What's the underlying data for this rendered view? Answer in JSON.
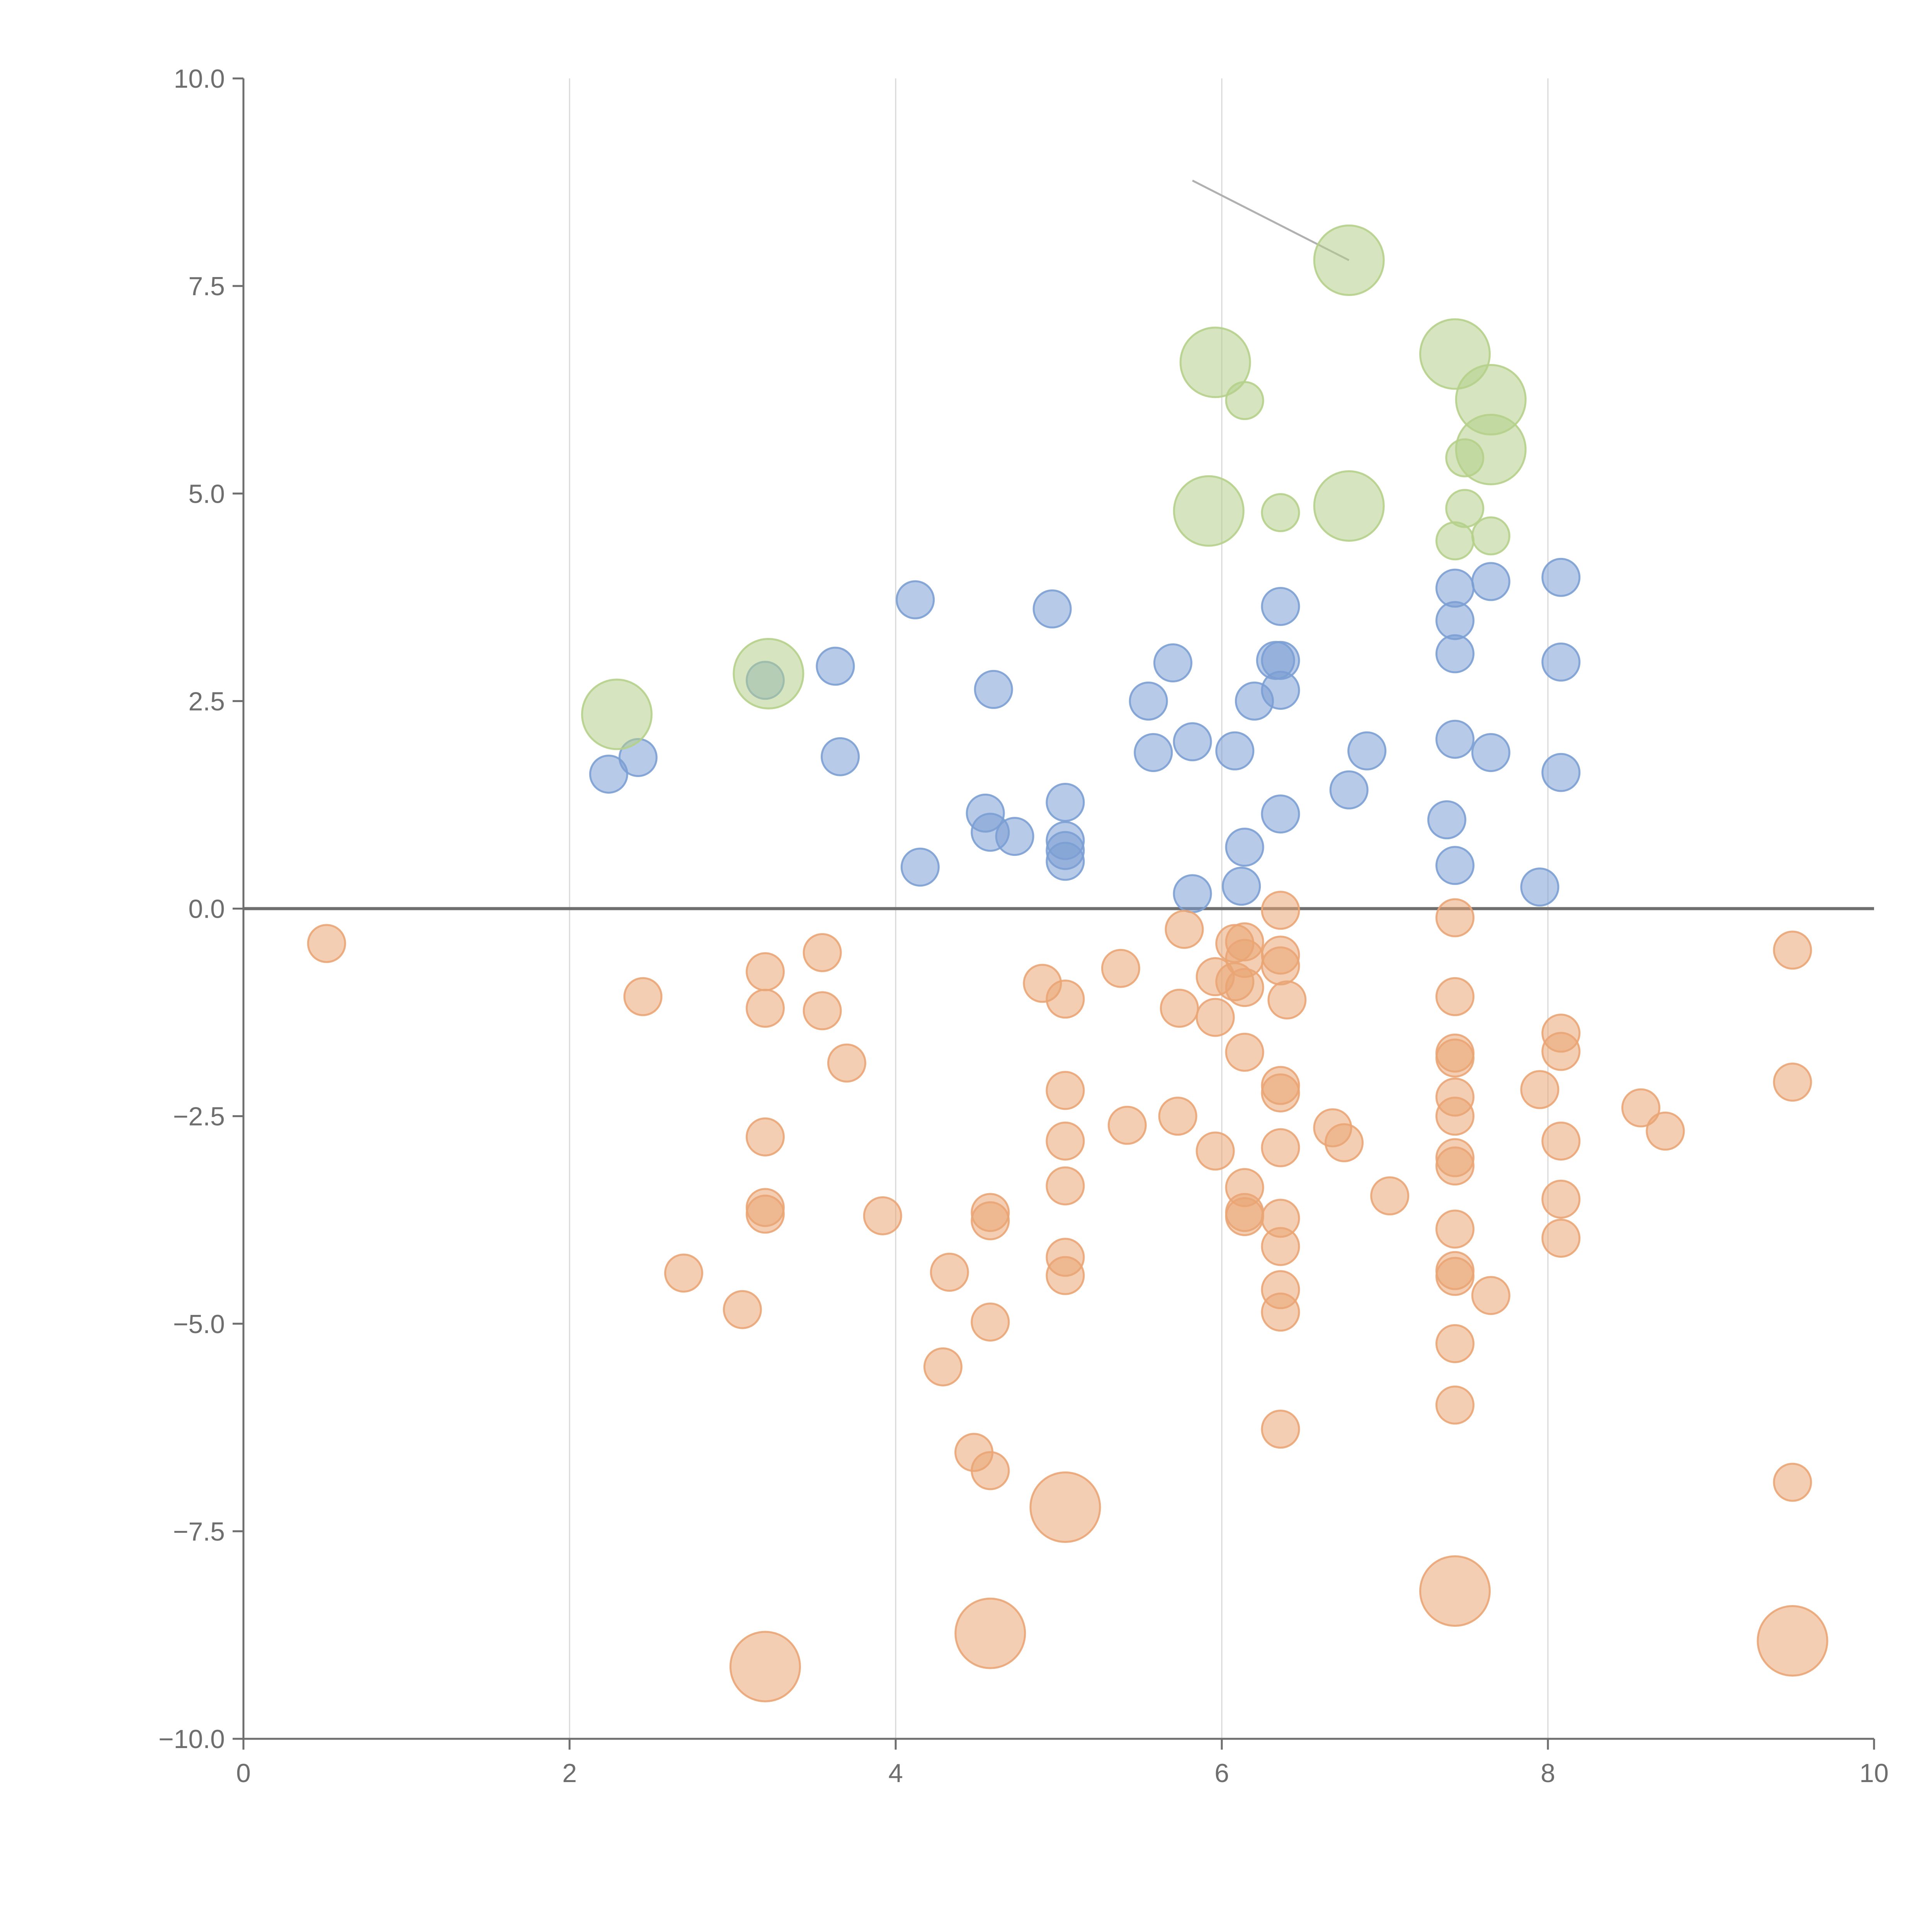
{
  "chart_data": {
    "type": "scatter",
    "title": "",
    "xlabel": "",
    "ylabel": "",
    "xlim": [
      0,
      10
    ],
    "ylim": [
      -10,
      10
    ],
    "x_ticks": [
      "0",
      "2",
      "4",
      "6",
      "8",
      "10"
    ],
    "y_ticks": [
      "10.0",
      "7.5",
      "5.0",
      "2.5",
      "0.0",
      "−2.5",
      "−5.0",
      "−7.5",
      "−10.0"
    ],
    "x_tick_values": [
      0,
      2,
      4,
      6,
      8,
      10
    ],
    "y_tick_values": [
      10,
      7.5,
      5,
      2.5,
      0,
      -2.5,
      -5,
      -7.5,
      -10
    ],
    "grid": "vertical",
    "zero_line": true,
    "legend": "none",
    "size_scale": "larger values drawn as larger bubbles",
    "series": [
      {
        "color": "#7b9fd4",
        "points": [
          {
            "x": 2.24,
            "y": 1.62,
            "s": 1
          },
          {
            "x": 2.42,
            "y": 1.82,
            "s": 1
          },
          {
            "x": 3.2,
            "y": 2.75,
            "s": 1
          },
          {
            "x": 3.63,
            "y": 2.92,
            "s": 1
          },
          {
            "x": 3.66,
            "y": 1.83,
            "s": 1
          },
          {
            "x": 4.12,
            "y": 3.72,
            "s": 1
          },
          {
            "x": 4.15,
            "y": 0.5,
            "s": 1
          },
          {
            "x": 4.55,
            "y": 1.15,
            "s": 1
          },
          {
            "x": 4.58,
            "y": 0.92,
            "s": 1
          },
          {
            "x": 4.6,
            "y": 2.64,
            "s": 1
          },
          {
            "x": 4.73,
            "y": 0.87,
            "s": 1
          },
          {
            "x": 4.96,
            "y": 3.61,
            "s": 1
          },
          {
            "x": 5.04,
            "y": 1.28,
            "s": 1
          },
          {
            "x": 5.04,
            "y": 0.82,
            "s": 1
          },
          {
            "x": 5.04,
            "y": 0.7,
            "s": 1
          },
          {
            "x": 5.04,
            "y": 0.57,
            "s": 1
          },
          {
            "x": 5.55,
            "y": 2.5,
            "s": 1
          },
          {
            "x": 5.58,
            "y": 1.88,
            "s": 1
          },
          {
            "x": 5.7,
            "y": 2.96,
            "s": 1
          },
          {
            "x": 5.82,
            "y": 2.01,
            "s": 1
          },
          {
            "x": 5.82,
            "y": 0.18,
            "s": 1
          },
          {
            "x": 6.08,
            "y": 1.9,
            "s": 1
          },
          {
            "x": 6.12,
            "y": 0.27,
            "s": 1
          },
          {
            "x": 6.14,
            "y": 0.74,
            "s": 1
          },
          {
            "x": 6.2,
            "y": 2.5,
            "s": 1
          },
          {
            "x": 6.33,
            "y": 2.99,
            "s": 1
          },
          {
            "x": 6.36,
            "y": 2.99,
            "s": 1
          },
          {
            "x": 6.36,
            "y": 3.64,
            "s": 1
          },
          {
            "x": 6.36,
            "y": 2.63,
            "s": 1
          },
          {
            "x": 6.36,
            "y": 1.14,
            "s": 1
          },
          {
            "x": 6.78,
            "y": 1.43,
            "s": 1
          },
          {
            "x": 6.89,
            "y": 1.9,
            "s": 1
          },
          {
            "x": 7.38,
            "y": 1.07,
            "s": 1
          },
          {
            "x": 7.43,
            "y": 3.86,
            "s": 1
          },
          {
            "x": 7.43,
            "y": 3.47,
            "s": 1
          },
          {
            "x": 7.43,
            "y": 3.07,
            "s": 1
          },
          {
            "x": 7.43,
            "y": 2.04,
            "s": 1
          },
          {
            "x": 7.43,
            "y": 0.52,
            "s": 1
          },
          {
            "x": 7.65,
            "y": 3.94,
            "s": 1
          },
          {
            "x": 7.65,
            "y": 1.88,
            "s": 1
          },
          {
            "x": 7.95,
            "y": 0.26,
            "s": 1
          },
          {
            "x": 8.08,
            "y": 3.99,
            "s": 1
          },
          {
            "x": 8.08,
            "y": 2.97,
            "s": 1
          },
          {
            "x": 8.08,
            "y": 1.64,
            "s": 1
          }
        ]
      },
      {
        "color": "#b5d08a",
        "points": [
          {
            "x": 2.29,
            "y": 2.34,
            "s": 3
          },
          {
            "x": 3.22,
            "y": 2.83,
            "s": 3
          },
          {
            "x": 5.92,
            "y": 4.79,
            "s": 3
          },
          {
            "x": 5.96,
            "y": 6.58,
            "s": 3
          },
          {
            "x": 6.14,
            "y": 6.12,
            "s": 1
          },
          {
            "x": 6.36,
            "y": 4.77,
            "s": 1
          },
          {
            "x": 6.78,
            "y": 7.81,
            "s": 3
          },
          {
            "x": 6.78,
            "y": 4.85,
            "s": 3
          },
          {
            "x": 7.43,
            "y": 6.68,
            "s": 3
          },
          {
            "x": 7.43,
            "y": 4.43,
            "s": 1
          },
          {
            "x": 7.49,
            "y": 5.43,
            "s": 1
          },
          {
            "x": 7.49,
            "y": 4.82,
            "s": 1
          },
          {
            "x": 7.65,
            "y": 6.13,
            "s": 3
          },
          {
            "x": 7.65,
            "y": 5.53,
            "s": 3
          },
          {
            "x": 7.65,
            "y": 4.49,
            "s": 1
          }
        ]
      },
      {
        "color": "#eaa574",
        "points": [
          {
            "x": 0.51,
            "y": -0.42,
            "s": 1
          },
          {
            "x": 2.45,
            "y": -1.06,
            "s": 1
          },
          {
            "x": 2.7,
            "y": -4.39,
            "s": 1
          },
          {
            "x": 3.06,
            "y": -4.83,
            "s": 1
          },
          {
            "x": 3.2,
            "y": -0.76,
            "s": 1
          },
          {
            "x": 3.2,
            "y": -1.2,
            "s": 1
          },
          {
            "x": 3.2,
            "y": -2.75,
            "s": 1
          },
          {
            "x": 3.2,
            "y": -3.6,
            "s": 1
          },
          {
            "x": 3.2,
            "y": -3.68,
            "s": 1
          },
          {
            "x": 3.2,
            "y": -9.13,
            "s": 3
          },
          {
            "x": 3.55,
            "y": -0.53,
            "s": 1
          },
          {
            "x": 3.55,
            "y": -1.23,
            "s": 1
          },
          {
            "x": 3.7,
            "y": -1.86,
            "s": 1
          },
          {
            "x": 3.92,
            "y": -3.7,
            "s": 1
          },
          {
            "x": 4.29,
            "y": -5.52,
            "s": 1
          },
          {
            "x": 4.33,
            "y": -4.38,
            "s": 1
          },
          {
            "x": 4.48,
            "y": -6.55,
            "s": 1
          },
          {
            "x": 4.58,
            "y": -3.66,
            "s": 1
          },
          {
            "x": 4.58,
            "y": -3.76,
            "s": 1
          },
          {
            "x": 4.58,
            "y": -4.98,
            "s": 1
          },
          {
            "x": 4.58,
            "y": -6.77,
            "s": 1
          },
          {
            "x": 4.58,
            "y": -8.73,
            "s": 3
          },
          {
            "x": 4.9,
            "y": -0.9,
            "s": 1
          },
          {
            "x": 5.04,
            "y": -1.09,
            "s": 1
          },
          {
            "x": 5.04,
            "y": -2.19,
            "s": 1
          },
          {
            "x": 5.04,
            "y": -2.8,
            "s": 1
          },
          {
            "x": 5.04,
            "y": -3.34,
            "s": 1
          },
          {
            "x": 5.04,
            "y": -4.2,
            "s": 1
          },
          {
            "x": 5.04,
            "y": -4.42,
            "s": 1
          },
          {
            "x": 5.04,
            "y": -7.21,
            "s": 3
          },
          {
            "x": 5.38,
            "y": -0.72,
            "s": 1
          },
          {
            "x": 5.42,
            "y": -2.61,
            "s": 1
          },
          {
            "x": 5.73,
            "y": -2.5,
            "s": 1
          },
          {
            "x": 5.74,
            "y": -1.2,
            "s": 1
          },
          {
            "x": 5.77,
            "y": -0.25,
            "s": 1
          },
          {
            "x": 5.96,
            "y": -0.82,
            "s": 1
          },
          {
            "x": 5.96,
            "y": -1.31,
            "s": 1
          },
          {
            "x": 5.96,
            "y": -2.92,
            "s": 1
          },
          {
            "x": 6.08,
            "y": -0.88,
            "s": 1
          },
          {
            "x": 6.08,
            "y": -0.42,
            "s": 1
          },
          {
            "x": 6.14,
            "y": -0.4,
            "s": 1
          },
          {
            "x": 6.14,
            "y": -0.6,
            "s": 1
          },
          {
            "x": 6.14,
            "y": -0.95,
            "s": 1
          },
          {
            "x": 6.14,
            "y": -1.73,
            "s": 1
          },
          {
            "x": 6.14,
            "y": -3.36,
            "s": 1
          },
          {
            "x": 6.14,
            "y": -3.66,
            "s": 1
          },
          {
            "x": 6.14,
            "y": -3.71,
            "s": 1
          },
          {
            "x": 6.36,
            "y": -0.02,
            "s": 1
          },
          {
            "x": 6.36,
            "y": -0.56,
            "s": 1
          },
          {
            "x": 6.36,
            "y": -0.69,
            "s": 1
          },
          {
            "x": 6.36,
            "y": -2.13,
            "s": 1
          },
          {
            "x": 6.36,
            "y": -2.22,
            "s": 1
          },
          {
            "x": 6.36,
            "y": -2.88,
            "s": 1
          },
          {
            "x": 6.36,
            "y": -3.73,
            "s": 1
          },
          {
            "x": 6.36,
            "y": -4.07,
            "s": 1
          },
          {
            "x": 6.36,
            "y": -4.59,
            "s": 1
          },
          {
            "x": 6.36,
            "y": -4.86,
            "s": 1
          },
          {
            "x": 6.36,
            "y": -6.27,
            "s": 1
          },
          {
            "x": 6.4,
            "y": -1.1,
            "s": 1
          },
          {
            "x": 6.68,
            "y": -2.64,
            "s": 1
          },
          {
            "x": 6.75,
            "y": -2.82,
            "s": 1
          },
          {
            "x": 7.03,
            "y": -3.46,
            "s": 1
          },
          {
            "x": 7.43,
            "y": -0.11,
            "s": 1
          },
          {
            "x": 7.43,
            "y": -1.06,
            "s": 1
          },
          {
            "x": 7.43,
            "y": -1.74,
            "s": 1
          },
          {
            "x": 7.43,
            "y": -1.8,
            "s": 1
          },
          {
            "x": 7.43,
            "y": -2.27,
            "s": 1
          },
          {
            "x": 7.43,
            "y": -2.5,
            "s": 1
          },
          {
            "x": 7.43,
            "y": -3.0,
            "s": 1
          },
          {
            "x": 7.43,
            "y": -3.1,
            "s": 1
          },
          {
            "x": 7.43,
            "y": -3.86,
            "s": 1
          },
          {
            "x": 7.43,
            "y": -4.36,
            "s": 1
          },
          {
            "x": 7.43,
            "y": -4.43,
            "s": 1
          },
          {
            "x": 7.43,
            "y": -5.24,
            "s": 1
          },
          {
            "x": 7.43,
            "y": -5.98,
            "s": 1
          },
          {
            "x": 7.43,
            "y": -8.22,
            "s": 3
          },
          {
            "x": 7.65,
            "y": -4.66,
            "s": 1
          },
          {
            "x": 7.95,
            "y": -2.18,
            "s": 1
          },
          {
            "x": 8.08,
            "y": -1.5,
            "s": 1
          },
          {
            "x": 8.08,
            "y": -1.72,
            "s": 1
          },
          {
            "x": 8.08,
            "y": -2.8,
            "s": 1
          },
          {
            "x": 8.08,
            "y": -3.5,
            "s": 1
          },
          {
            "x": 8.08,
            "y": -3.97,
            "s": 1
          },
          {
            "x": 8.57,
            "y": -2.4,
            "s": 1
          },
          {
            "x": 8.72,
            "y": -2.68,
            "s": 1
          },
          {
            "x": 9.5,
            "y": -0.5,
            "s": 1
          },
          {
            "x": 9.5,
            "y": -2.09,
            "s": 1
          },
          {
            "x": 9.5,
            "y": -6.91,
            "s": 1
          },
          {
            "x": 9.5,
            "y": -8.82,
            "s": 3
          }
        ]
      }
    ]
  }
}
